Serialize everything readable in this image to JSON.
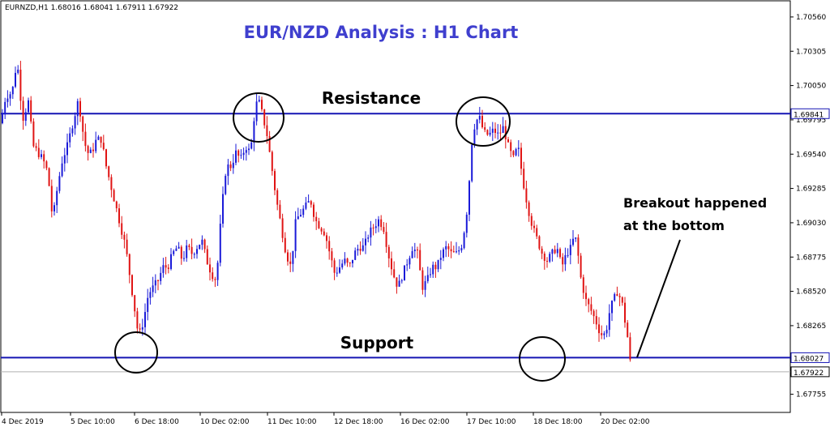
{
  "chart_data": {
    "type": "candlestick",
    "symbol_line": "EURNZD,H1  1.68016 1.68041 1.67911 1.67922",
    "title": "EUR/NZD Analysis : H1 Chart",
    "y_ticks": [
      "1.70560",
      "1.70305",
      "1.70050",
      "1.69795",
      "1.69540",
      "1.69285",
      "1.69030",
      "1.68775",
      "1.68520",
      "1.68265",
      "1.67755"
    ],
    "ylim": [
      1.6762,
      1.7068
    ],
    "x_ticks": [
      "4 Dec 2019",
      "5 Dec 10:00",
      "6 Dec 18:00",
      "10 Dec 02:00",
      "11 Dec 10:00",
      "12 Dec 18:00",
      "16 Dec 02:00",
      "17 Dec 10:00",
      "18 Dec 18:00",
      "20 Dec 02:00"
    ],
    "levels": {
      "resistance": {
        "value": 1.69841,
        "label": "1.69841"
      },
      "support": {
        "value": 1.68027,
        "label": "1.68027"
      },
      "current": {
        "value": 1.67922,
        "label": "1.67922"
      }
    },
    "annotations": {
      "resistance_label": "Resistance",
      "support_label": "Support",
      "breakout_line1": "Breakout happened",
      "breakout_line2": "at the bottom"
    },
    "path_points": [
      [
        0,
        1.6977
      ],
      [
        6,
        1.6997
      ],
      [
        14,
        1.7
      ],
      [
        20,
        1.7024
      ],
      [
        27,
        1.698
      ],
      [
        34,
        1.6993
      ],
      [
        40,
        1.696
      ],
      [
        46,
        1.6955
      ],
      [
        52,
        1.695
      ],
      [
        58,
        1.694
      ],
      [
        64,
        1.6905
      ],
      [
        70,
        1.693
      ],
      [
        76,
        1.695
      ],
      [
        82,
        1.696
      ],
      [
        90,
        1.698
      ],
      [
        96,
        1.6995
      ],
      [
        100,
        1.6975
      ],
      [
        106,
        1.6955
      ],
      [
        112,
        1.6955
      ],
      [
        118,
        1.6965
      ],
      [
        124,
        1.6965
      ],
      [
        130,
        1.6945
      ],
      [
        136,
        1.693
      ],
      [
        142,
        1.6915
      ],
      [
        148,
        1.69
      ],
      [
        154,
        1.6885
      ],
      [
        160,
        1.686
      ],
      [
        166,
        1.6835
      ],
      [
        170,
        1.6818
      ],
      [
        176,
        1.683
      ],
      [
        182,
        1.685
      ],
      [
        188,
        1.6855
      ],
      [
        194,
        1.686
      ],
      [
        200,
        1.687
      ],
      [
        206,
        1.687
      ],
      [
        212,
        1.688
      ],
      [
        218,
        1.6885
      ],
      [
        224,
        1.6875
      ],
      [
        230,
        1.6885
      ],
      [
        236,
        1.688
      ],
      [
        242,
        1.6885
      ],
      [
        248,
        1.689
      ],
      [
        254,
        1.6875
      ],
      [
        260,
        1.6865
      ],
      [
        266,
        1.686
      ],
      [
        272,
        1.691
      ],
      [
        278,
        1.6945
      ],
      [
        284,
        1.6945
      ],
      [
        290,
        1.6955
      ],
      [
        296,
        1.695
      ],
      [
        302,
        1.696
      ],
      [
        308,
        1.6955
      ],
      [
        314,
        1.699
      ],
      [
        318,
        1.6994
      ],
      [
        322,
        1.6985
      ],
      [
        328,
        1.697
      ],
      [
        334,
        1.6945
      ],
      [
        340,
        1.692
      ],
      [
        346,
        1.69
      ],
      [
        352,
        1.688
      ],
      [
        358,
        1.687
      ],
      [
        364,
        1.6905
      ],
      [
        370,
        1.691
      ],
      [
        376,
        1.6915
      ],
      [
        382,
        1.692
      ],
      [
        388,
        1.6905
      ],
      [
        394,
        1.69
      ],
      [
        400,
        1.6895
      ],
      [
        406,
        1.688
      ],
      [
        412,
        1.6865
      ],
      [
        418,
        1.687
      ],
      [
        424,
        1.6875
      ],
      [
        430,
        1.687
      ],
      [
        436,
        1.688
      ],
      [
        442,
        1.6885
      ],
      [
        448,
        1.6885
      ],
      [
        454,
        1.6895
      ],
      [
        460,
        1.69
      ],
      [
        466,
        1.6905
      ],
      [
        472,
        1.69
      ],
      [
        478,
        1.688
      ],
      [
        484,
        1.6865
      ],
      [
        490,
        1.6855
      ],
      [
        496,
        1.6865
      ],
      [
        502,
        1.6875
      ],
      [
        508,
        1.6885
      ],
      [
        514,
        1.688
      ],
      [
        520,
        1.6855
      ],
      [
        526,
        1.686
      ],
      [
        532,
        1.687
      ],
      [
        538,
        1.687
      ],
      [
        544,
        1.688
      ],
      [
        550,
        1.6885
      ],
      [
        556,
        1.688
      ],
      [
        562,
        1.688
      ],
      [
        568,
        1.6885
      ],
      [
        574,
        1.6905
      ],
      [
        578,
        1.6935
      ],
      [
        582,
        1.697
      ],
      [
        586,
        1.6978
      ],
      [
        590,
        1.6982
      ],
      [
        596,
        1.697
      ],
      [
        602,
        1.6968
      ],
      [
        608,
        1.6972
      ],
      [
        614,
        1.6968
      ],
      [
        620,
        1.6974
      ],
      [
        626,
        1.696
      ],
      [
        632,
        1.695
      ],
      [
        638,
        1.696
      ],
      [
        644,
        1.6935
      ],
      [
        650,
        1.6915
      ],
      [
        656,
        1.69
      ],
      [
        662,
        1.689
      ],
      [
        668,
        1.688
      ],
      [
        674,
        1.6875
      ],
      [
        680,
        1.688
      ],
      [
        686,
        1.6885
      ],
      [
        692,
        1.687
      ],
      [
        698,
        1.688
      ],
      [
        704,
        1.6885
      ],
      [
        708,
        1.6895
      ],
      [
        712,
        1.688
      ],
      [
        716,
        1.686
      ],
      [
        722,
        1.6845
      ],
      [
        728,
        1.6838
      ],
      [
        734,
        1.683
      ],
      [
        740,
        1.682
      ],
      [
        746,
        1.682
      ],
      [
        752,
        1.684
      ],
      [
        756,
        1.6845
      ],
      [
        760,
        1.6852
      ],
      [
        766,
        1.6845
      ],
      [
        770,
        1.683
      ],
      [
        774,
        1.6815
      ],
      [
        777,
        1.6796
      ]
    ]
  }
}
